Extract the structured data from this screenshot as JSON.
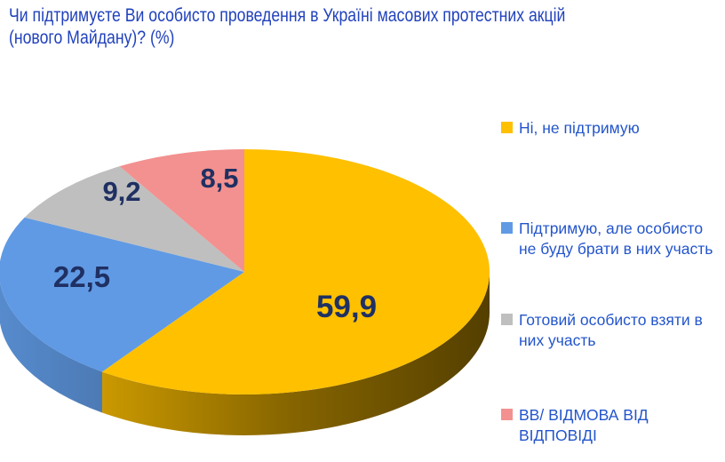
{
  "page": {
    "background": "#FFFFFF"
  },
  "chart_data": {
    "type": "pie",
    "three_d": true,
    "start_angle_deg": 0,
    "direction": "clockwise",
    "title": "Чи підтримуєте Ви особисто проведення в Україні масових протестних акцій (нового Майдану)? (%)",
    "title_lines": [
      "Чи підтримуєте Ви особисто проведення в Україні масових протестних акцій",
      "(нового Майдану)? (%)"
    ],
    "title_color": "#2142BD",
    "units": "%",
    "slices": [
      {
        "label": "Ні, не підтримую",
        "value": 59.9,
        "display": "59,9",
        "color": "#FFC000"
      },
      {
        "label": "Підтримую, але особисто не буду брати в них участь",
        "value": 22.5,
        "display": "22,5",
        "color": "#609AE4"
      },
      {
        "label": "Готовий особисто взяти в них участь",
        "value": 9.2,
        "display": "9,2",
        "color": "#BFBFBF"
      },
      {
        "label": "ВВ/ ВІДМОВА ВІД ВІДПОВІДІ",
        "value": 8.5,
        "display": "8,5",
        "color": "#F2918F"
      }
    ],
    "value_label_color": "#1F3062",
    "legend": {
      "position": "right",
      "text_color": "#2355CB"
    }
  }
}
